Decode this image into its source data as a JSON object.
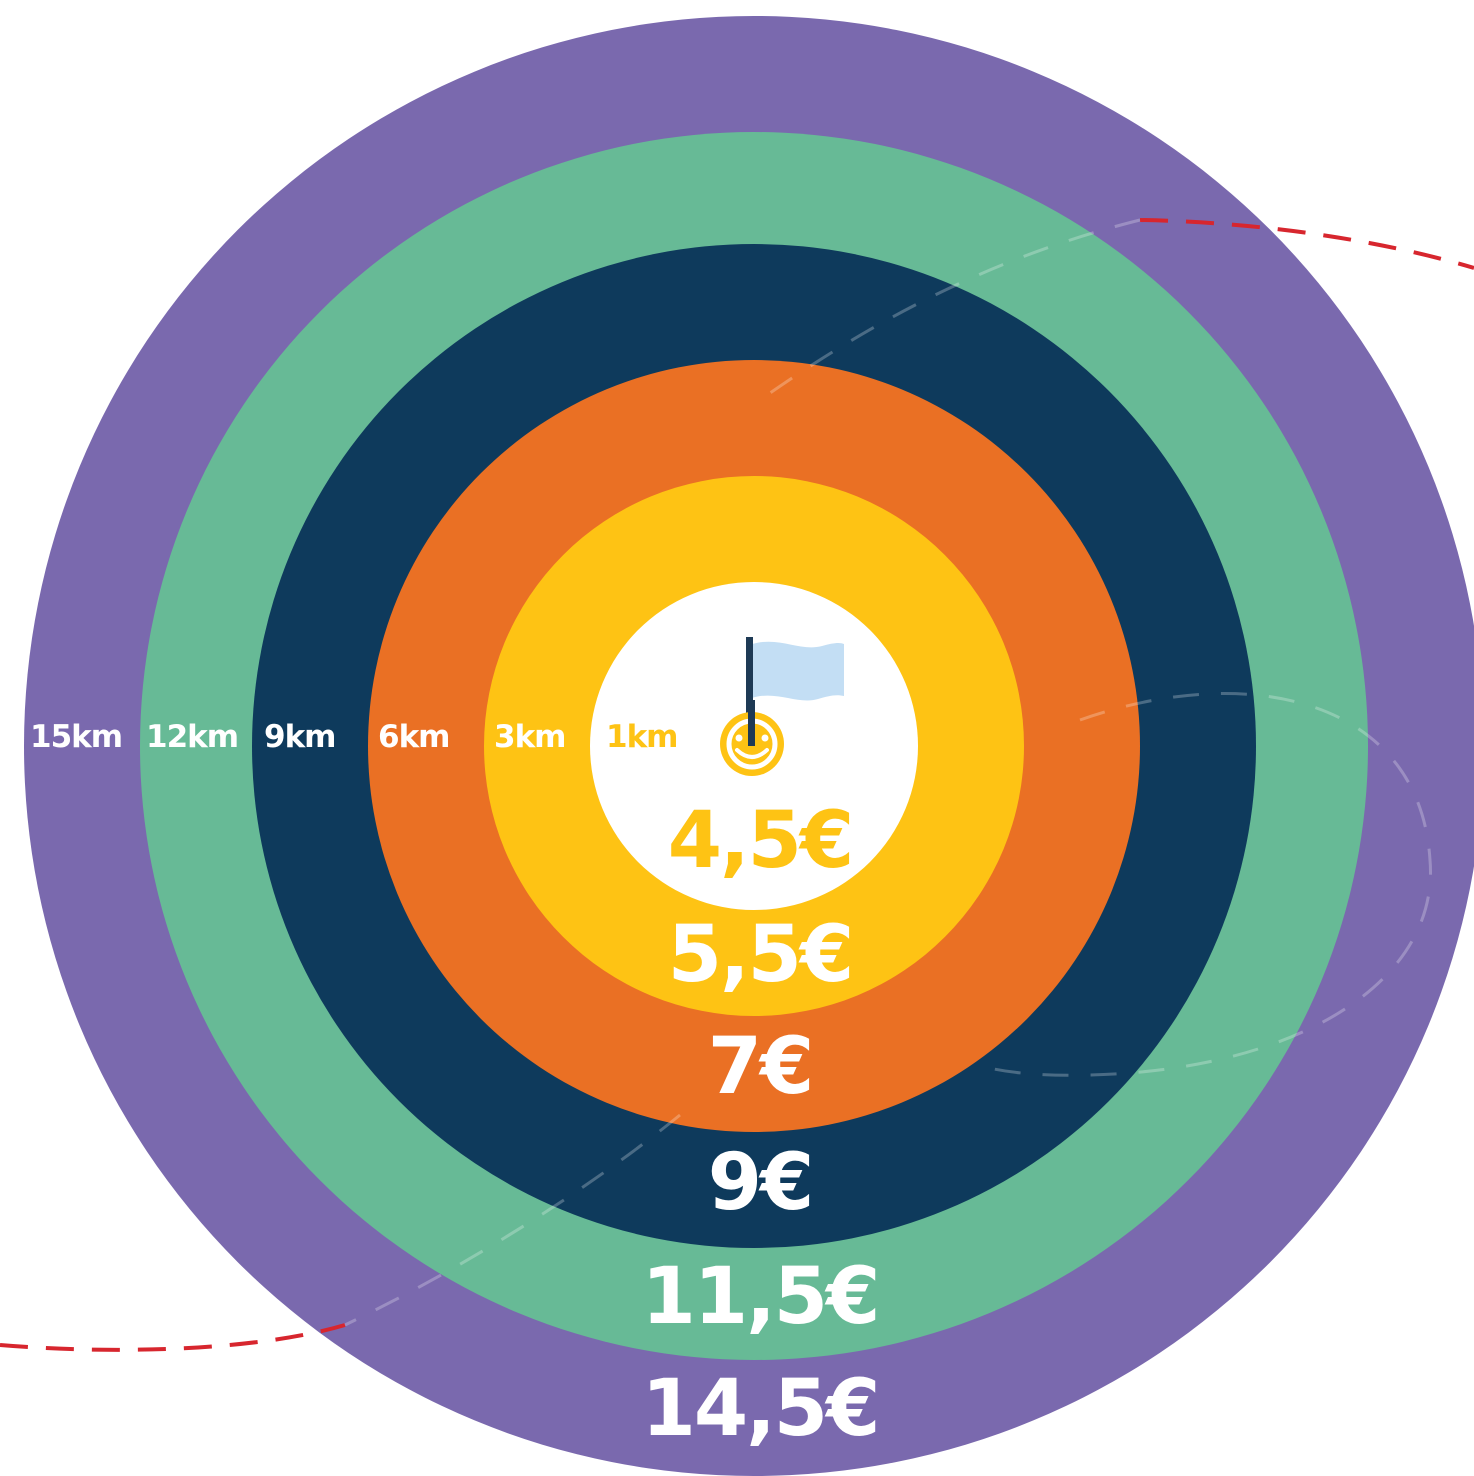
{
  "colors": {
    "ring_15km": "#7A69AE",
    "ring_12km": "#67BA96",
    "ring_9km": "#0E3A5C",
    "ring_6km": "#EA7024",
    "ring_3km": "#FEC314",
    "ring_1km": "#FFFFFF",
    "flag": "#C3DEF4",
    "route_dash": "#D7262E"
  },
  "center_icon": "smiley-pin-icon",
  "flag_icon": "flag-icon",
  "zones": [
    {
      "distance": "15km",
      "price": "14,5€"
    },
    {
      "distance": "12km",
      "price": "11,5€"
    },
    {
      "distance": "9km",
      "price": "9€"
    },
    {
      "distance": "6km",
      "price": "7€"
    },
    {
      "distance": "3km",
      "price": "5,5€"
    },
    {
      "distance": "1km",
      "price": "4,5€"
    }
  ]
}
